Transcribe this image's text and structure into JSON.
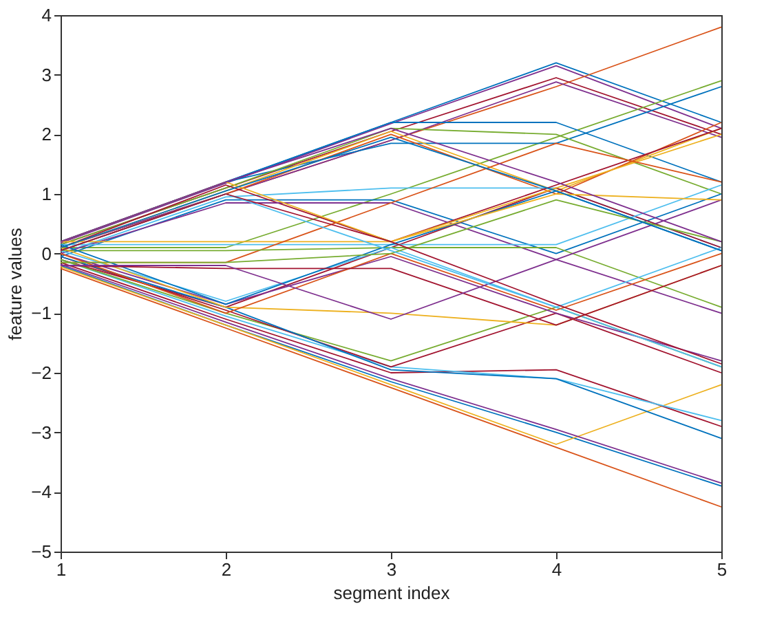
{
  "chart_data": {
    "type": "line",
    "xlabel": "segment index",
    "ylabel": "feature values",
    "x": [
      1,
      2,
      3,
      4,
      5
    ],
    "xlim": [
      1,
      5
    ],
    "xticks": [
      1,
      2,
      3,
      4,
      5
    ],
    "ylim": [
      -5,
      4
    ],
    "yticks": [
      -5,
      -4,
      -3,
      -2,
      -1,
      0,
      1,
      2,
      3,
      4
    ],
    "grid": false,
    "legend": false,
    "marker": "none",
    "line_style": "solid",
    "series": [
      {
        "color": "#0072bd",
        "values": [
          0.2,
          1.2,
          2.2,
          3.2,
          2.2
        ]
      },
      {
        "color": "#7e2f8e",
        "values": [
          0.18,
          1.18,
          2.18,
          3.15,
          2.1
        ]
      },
      {
        "color": "#d95319",
        "values": [
          0.1,
          1.0,
          1.9,
          2.8,
          3.8
        ]
      },
      {
        "color": "#a2142f",
        "values": [
          0.15,
          1.1,
          2.05,
          2.95,
          2.0
        ]
      },
      {
        "color": "#7e2f8e",
        "values": [
          0.1,
          1.0,
          1.9,
          2.88,
          1.95
        ]
      },
      {
        "color": "#77ac30",
        "values": [
          0.1,
          0.1,
          1.0,
          1.95,
          2.9
        ]
      },
      {
        "color": "#0072bd",
        "values": [
          0.2,
          1.2,
          1.85,
          1.85,
          2.8
        ]
      },
      {
        "color": "#0072bd",
        "values": [
          0.2,
          1.2,
          2.2,
          2.2,
          1.2
        ]
      },
      {
        "color": "#77ac30",
        "values": [
          0.15,
          1.1,
          2.1,
          2.0,
          1.0
        ]
      },
      {
        "color": "#edb120",
        "values": [
          0.1,
          1.05,
          2.05,
          1.05,
          2.1
        ]
      },
      {
        "color": "#d95319",
        "values": [
          0.05,
          1.0,
          2.0,
          1.0,
          2.2
        ]
      },
      {
        "color": "#4dbeee",
        "values": [
          0.0,
          0.95,
          1.1,
          1.1,
          0.1
        ]
      },
      {
        "color": "#0072bd",
        "values": [
          -0.05,
          0.9,
          0.9,
          0.0,
          1.0
        ]
      },
      {
        "color": "#a2142f",
        "values": [
          0.1,
          1.15,
          0.2,
          1.15,
          2.1
        ]
      },
      {
        "color": "#7e2f8e",
        "values": [
          0.0,
          0.85,
          0.85,
          -0.1,
          -1.0
        ]
      },
      {
        "color": "#a2142f",
        "values": [
          -0.1,
          -0.9,
          0.1,
          1.1,
          0.1
        ]
      },
      {
        "color": "#edb120",
        "values": [
          0.2,
          0.2,
          0.2,
          1.1,
          2.0
        ]
      },
      {
        "color": "#4dbeee",
        "values": [
          0.15,
          0.15,
          0.15,
          0.15,
          1.15
        ]
      },
      {
        "color": "#d95319",
        "values": [
          -0.15,
          -0.15,
          0.85,
          1.85,
          1.2
        ]
      },
      {
        "color": "#77ac30",
        "values": [
          0.05,
          0.05,
          0.1,
          0.1,
          -0.9
        ]
      },
      {
        "color": "#0072bd",
        "values": [
          -0.2,
          -1.2,
          -2.15,
          -3.0,
          -3.9
        ]
      },
      {
        "color": "#d95319",
        "values": [
          -0.25,
          -1.25,
          -2.25,
          -3.25,
          -4.25
        ]
      },
      {
        "color": "#edb120",
        "values": [
          -0.22,
          -1.2,
          -2.2,
          -3.2,
          -2.2
        ]
      },
      {
        "color": "#7e2f8e",
        "values": [
          -0.18,
          -1.15,
          -2.1,
          -2.95,
          -3.85
        ]
      },
      {
        "color": "#a2142f",
        "values": [
          -0.15,
          -1.1,
          -2.0,
          -1.95,
          -2.9
        ]
      },
      {
        "color": "#4dbeee",
        "values": [
          -0.1,
          -1.05,
          -1.9,
          -2.1,
          -2.8
        ]
      },
      {
        "color": "#77ac30",
        "values": [
          -0.1,
          -1.0,
          -1.8,
          -0.9,
          -1.9
        ]
      },
      {
        "color": "#a2142f",
        "values": [
          -0.05,
          -0.95,
          -1.9,
          -1.0,
          -2.0
        ]
      },
      {
        "color": "#0072bd",
        "values": [
          -0.05,
          -0.9,
          -1.95,
          -2.1,
          -3.1
        ]
      },
      {
        "color": "#7e2f8e",
        "values": [
          0.0,
          -0.85,
          -0.05,
          -1.0,
          -1.8
        ]
      },
      {
        "color": "#4dbeee",
        "values": [
          0.05,
          -0.8,
          0.1,
          -0.9,
          -1.9
        ]
      },
      {
        "color": "#edb120",
        "values": [
          0.1,
          -0.9,
          -1.0,
          -1.2,
          -0.2
        ]
      },
      {
        "color": "#0072bd",
        "values": [
          0.15,
          -0.85,
          0.15,
          1.05,
          0.05
        ]
      },
      {
        "color": "#d95319",
        "values": [
          0.0,
          -1.0,
          0.0,
          -0.95,
          0.0
        ]
      },
      {
        "color": "#a2142f",
        "values": [
          -0.2,
          -0.25,
          -0.25,
          -1.2,
          -0.2
        ]
      },
      {
        "color": "#7e2f8e",
        "values": [
          -0.2,
          -0.2,
          -1.1,
          -0.1,
          0.9
        ]
      },
      {
        "color": "#77ac30",
        "values": [
          -0.15,
          -0.15,
          0.0,
          0.9,
          0.2
        ]
      },
      {
        "color": "#4dbeee",
        "values": [
          0.05,
          1.0,
          0.05,
          -0.9,
          0.1
        ]
      },
      {
        "color": "#edb120",
        "values": [
          0.2,
          1.2,
          0.2,
          1.0,
          0.9
        ]
      },
      {
        "color": "#0072bd",
        "values": [
          0.1,
          1.05,
          1.95,
          1.05,
          0.05
        ]
      },
      {
        "color": "#a2142f",
        "values": [
          0.05,
          1.0,
          0.2,
          -0.85,
          -1.85
        ]
      },
      {
        "color": "#7e2f8e",
        "values": [
          0.2,
          1.2,
          2.1,
          1.2,
          0.2
        ]
      }
    ]
  }
}
